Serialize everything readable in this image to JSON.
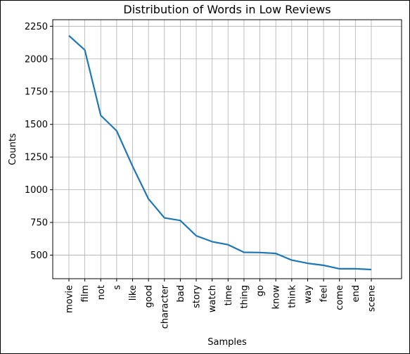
{
  "chart_data": {
    "type": "line",
    "title": "Distribution of Words in Low Reviews",
    "xlabel": "Samples",
    "ylabel": "Counts",
    "categories": [
      "movie",
      "film",
      "not",
      "s",
      "like",
      "good",
      "character",
      "bad",
      "story",
      "watch",
      "time",
      "thing",
      "go",
      "know",
      "think",
      "way",
      "feel",
      "come",
      "end",
      "scene"
    ],
    "values": [
      2178,
      2068,
      1568,
      1450,
      1180,
      930,
      785,
      765,
      648,
      603,
      580,
      522,
      520,
      513,
      462,
      438,
      422,
      396,
      396,
      390
    ],
    "ylim": [
      320,
      2300
    ],
    "yticks": [
      500,
      750,
      1000,
      1250,
      1500,
      1750,
      2000,
      2250
    ],
    "grid": true,
    "colors": {
      "line": "#1f77b4",
      "grid": "#b0b0b0",
      "axis": "#000000"
    }
  }
}
